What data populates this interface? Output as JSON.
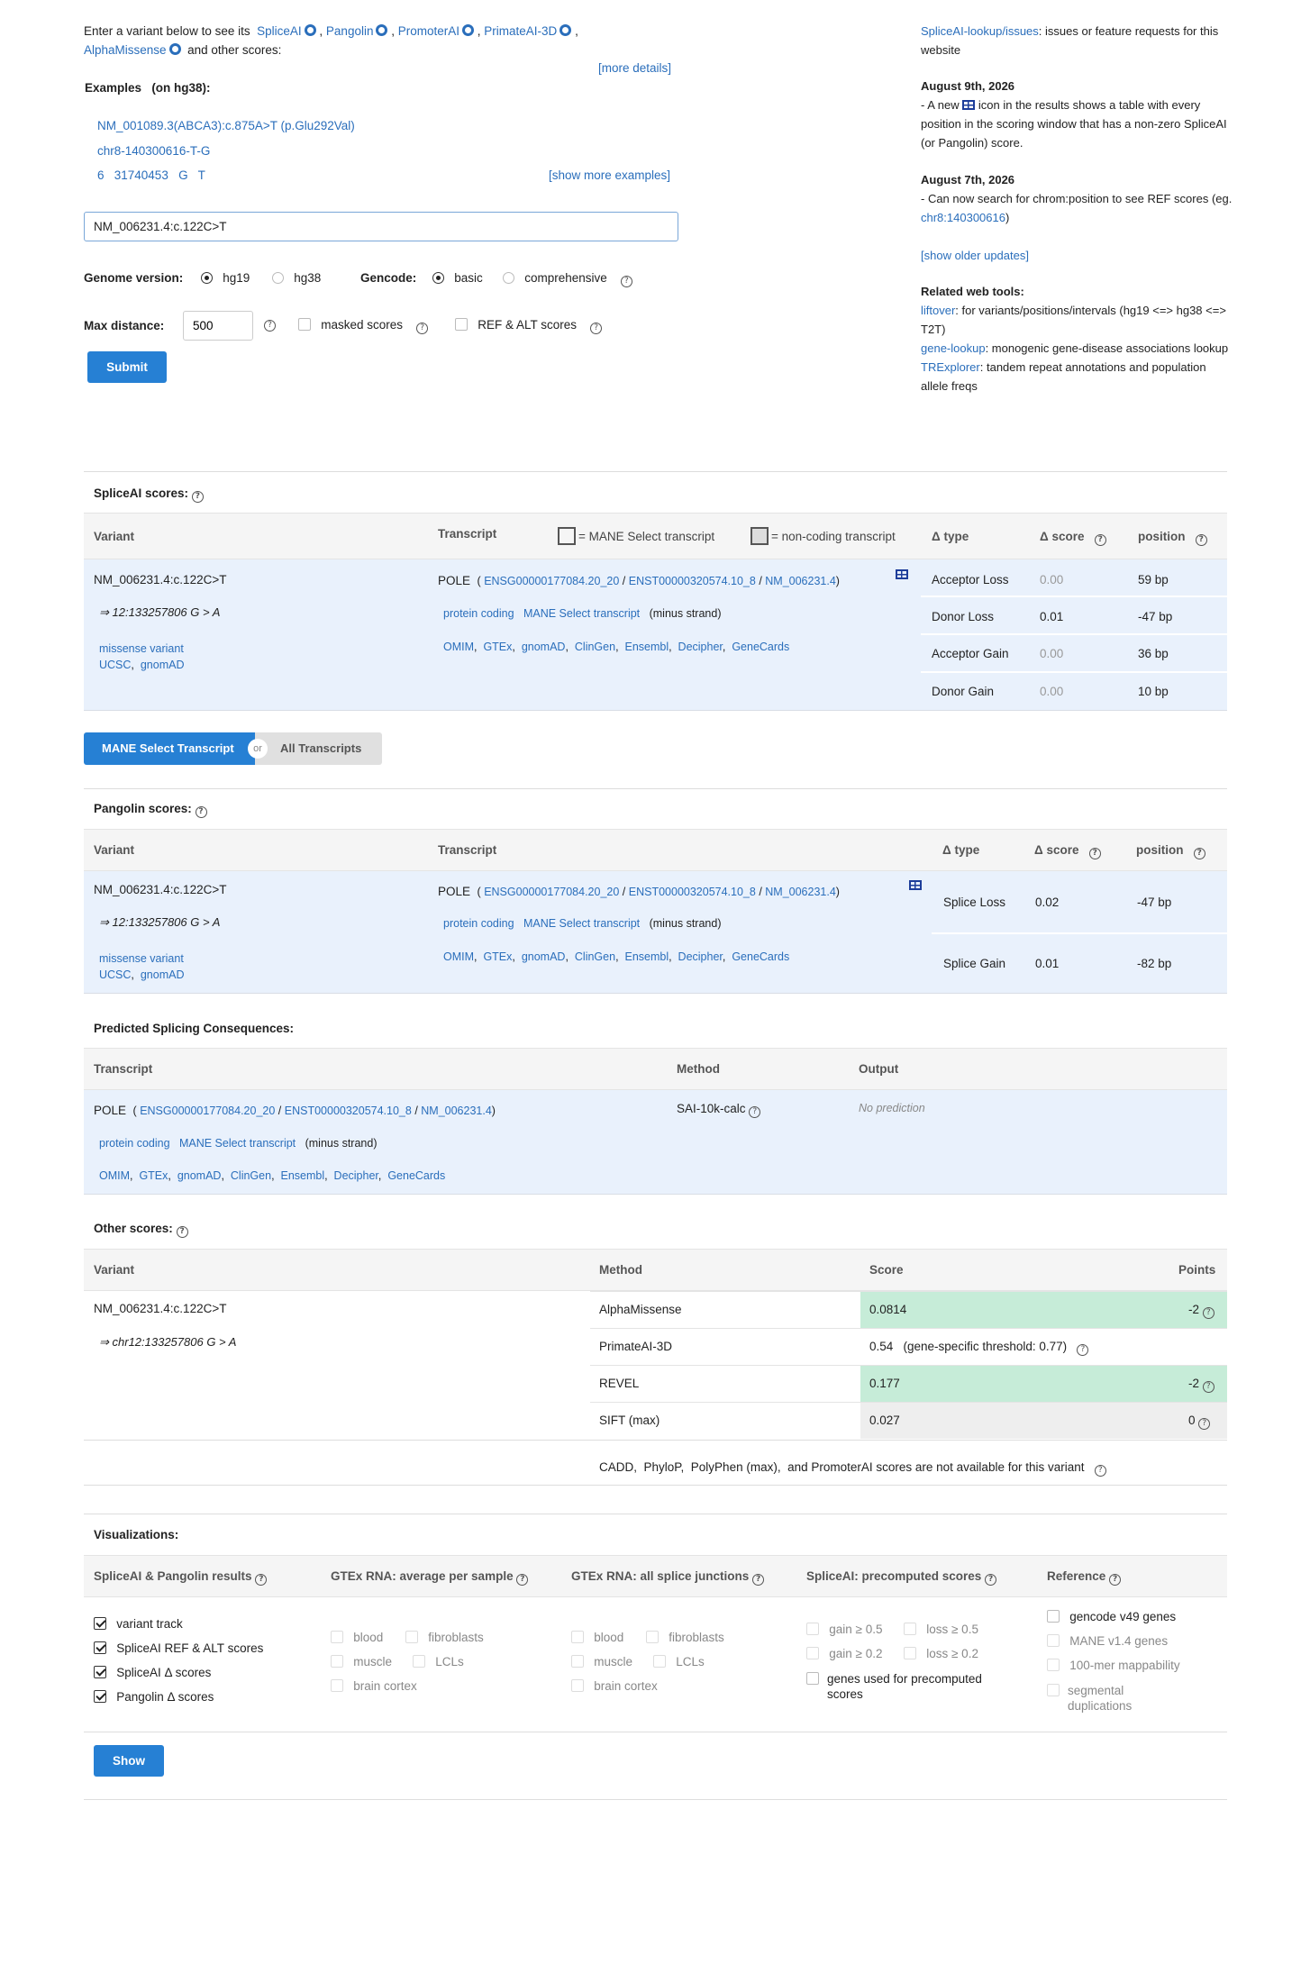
{
  "intro": {
    "text1": "Enter a variant below to see its",
    "spliceai": "SpliceAI",
    "pangolin": "Pangolin",
    "promoterai": "PromoterAI",
    "primateai": "PrimateAI-3D",
    "alphamissense": "AlphaMissense",
    "text2": "and other scores:",
    "more_details": "[more details]"
  },
  "examples": {
    "title": "Examples",
    "sub": "(on hg38):",
    "items": [
      "NM_001089.3(ABCA3):c.875A>T (p.Glu292Val)",
      "chr8-140300616-T-G",
      "6   31740453   G   T"
    ],
    "show_more": "[show more examples]"
  },
  "form": {
    "variant_value": "NM_006231.4:c.122C>T",
    "genome_label": "Genome version:",
    "hg19": "hg19",
    "hg38": "hg38",
    "gencode_label": "Gencode:",
    "basic": "basic",
    "comprehensive": "comprehensive",
    "maxdist_label": "Max distance:",
    "maxdist_value": "500",
    "masked": "masked scores",
    "refalt": "REF & ALT scores",
    "submit": "Submit"
  },
  "news": {
    "issues_link": "SpliceAI-lookup/issues",
    "issues_text": ": issues or feature requests for this website",
    "u1_date": "August 9th, 2026",
    "u1_a": "- A new",
    "u1_b": "icon in the results shows a table with every position in the scoring window that has a non-zero SpliceAI (or Pangolin) score.",
    "u2_date": "August 7th, 2026",
    "u2_a": "- Can now search for chrom:position to see REF scores (eg.",
    "u2_link": "chr8:140300616",
    "u2_b": ")",
    "older": "[show older updates]",
    "tools_title": "Related web tools:",
    "t1_link": "liftover",
    "t1_text": ": for variants/positions/intervals (hg19 <=> hg38 <=> T2T)",
    "t2_link": "gene-lookup",
    "t2_text": ": monogenic gene-disease associations lookup",
    "t3_link": "TRExplorer",
    "t3_text": ": tandem repeat annotations and population allele freqs"
  },
  "spliceai": {
    "title": "SpliceAI scores:",
    "h_variant": "Variant",
    "h_transcript": "Transcript",
    "legend_mane": "= MANE Select transcript",
    "legend_noncoding": "= non-coding transcript",
    "h_dtype": "Δ type",
    "h_dscore": "Δ score",
    "h_position": "position",
    "variant": "NM_006231.4:c.122C>T",
    "arrow": "⇒ 12:133257806 G > A",
    "consequence": "missense variant",
    "ucsc": "UCSC",
    "gnomad": "gnomAD",
    "gene": "POLE",
    "ensg": "ENSG00000177084.20_20",
    "enst": "ENST00000320574.10_8",
    "nm": "NM_006231.4",
    "biotype": "protein coding",
    "mane": "MANE Select transcript",
    "strand": "(minus strand)",
    "links": [
      "OMIM",
      "GTEx",
      "gnomAD",
      "ClinGen",
      "Ensembl",
      "Decipher",
      "GeneCards"
    ],
    "rows": [
      {
        "type": "Acceptor Loss",
        "score": "0.00",
        "pos": "59 bp"
      },
      {
        "type": "Donor Loss",
        "score": "0.01",
        "pos": "-47 bp"
      },
      {
        "type": "Acceptor Gain",
        "score": "0.00",
        "pos": "36 bp"
      },
      {
        "type": "Donor Gain",
        "score": "0.00",
        "pos": "10 bp"
      }
    ]
  },
  "toggle": {
    "mane": "MANE Select Transcript",
    "or": "or",
    "all": "All Transcripts"
  },
  "pangolin": {
    "title": "Pangolin scores:",
    "h_variant": "Variant",
    "h_transcript": "Transcript",
    "h_dtype": "Δ type",
    "h_dscore": "Δ score",
    "h_position": "position",
    "arrow": "⇒ 12:133257806 G > A",
    "rows": [
      {
        "type": "Splice Loss",
        "score": "0.02",
        "pos": "-47 bp"
      },
      {
        "type": "Splice Gain",
        "score": "0.01",
        "pos": "-82 bp"
      }
    ]
  },
  "consequences": {
    "title": "Predicted Splicing Consequences:",
    "h_transcript": "Transcript",
    "h_method": "Method",
    "h_output": "Output",
    "method": "SAI-10k-calc",
    "output": "No prediction"
  },
  "other": {
    "title": "Other scores:",
    "h_variant": "Variant",
    "h_method": "Method",
    "h_score": "Score",
    "h_points": "Points",
    "variant": "NM_006231.4:c.122C>T",
    "arrow": "⇒ chr12:133257806 G > A",
    "rows": [
      {
        "method": "AlphaMissense",
        "score": "0.0814",
        "points": "-2"
      },
      {
        "method": "PrimateAI-3D",
        "score": "0.54   (gene-specific threshold: 0.77)",
        "points": ""
      },
      {
        "method": "REVEL",
        "score": "0.177",
        "points": "-2"
      },
      {
        "method": "SIFT (max)",
        "score": "0.027",
        "points": "0"
      }
    ],
    "note": "CADD,  PhyloP,  PolyPhen (max),  and PromoterAI scores are not available for this variant"
  },
  "viz": {
    "title": "Visualizations:",
    "c1": "SpliceAI & Pangolin results",
    "c2": "GTEx RNA: average per sample",
    "c3": "GTEx RNA: all splice junctions",
    "c4": "SpliceAI: precomputed scores",
    "c5": "Reference",
    "c1_items": [
      "variant track",
      "SpliceAI REF & ALT scores",
      "SpliceAI Δ  scores",
      "Pangolin Δ  scores"
    ],
    "gtex": {
      "blood": "blood",
      "fibro": "fibroblasts",
      "muscle": "muscle",
      "lcl": "LCLs",
      "brain": "brain cortex"
    },
    "pre": {
      "g5": "gain ≥ 0.5",
      "l5": "loss ≥ 0.5",
      "g2": "gain ≥ 0.2",
      "l2": "loss ≥ 0.2",
      "genes": "genes used for precomputed scores"
    },
    "ref": [
      "gencode v49 genes",
      "MANE v1.4 genes",
      "100-mer mappability",
      "segmental duplications"
    ],
    "show": "Show"
  },
  "colors": {
    "link": "#2a6ebb",
    "button": "#2680d4",
    "row_bg": "#e9f1fc",
    "green": "#c6ecd8"
  }
}
